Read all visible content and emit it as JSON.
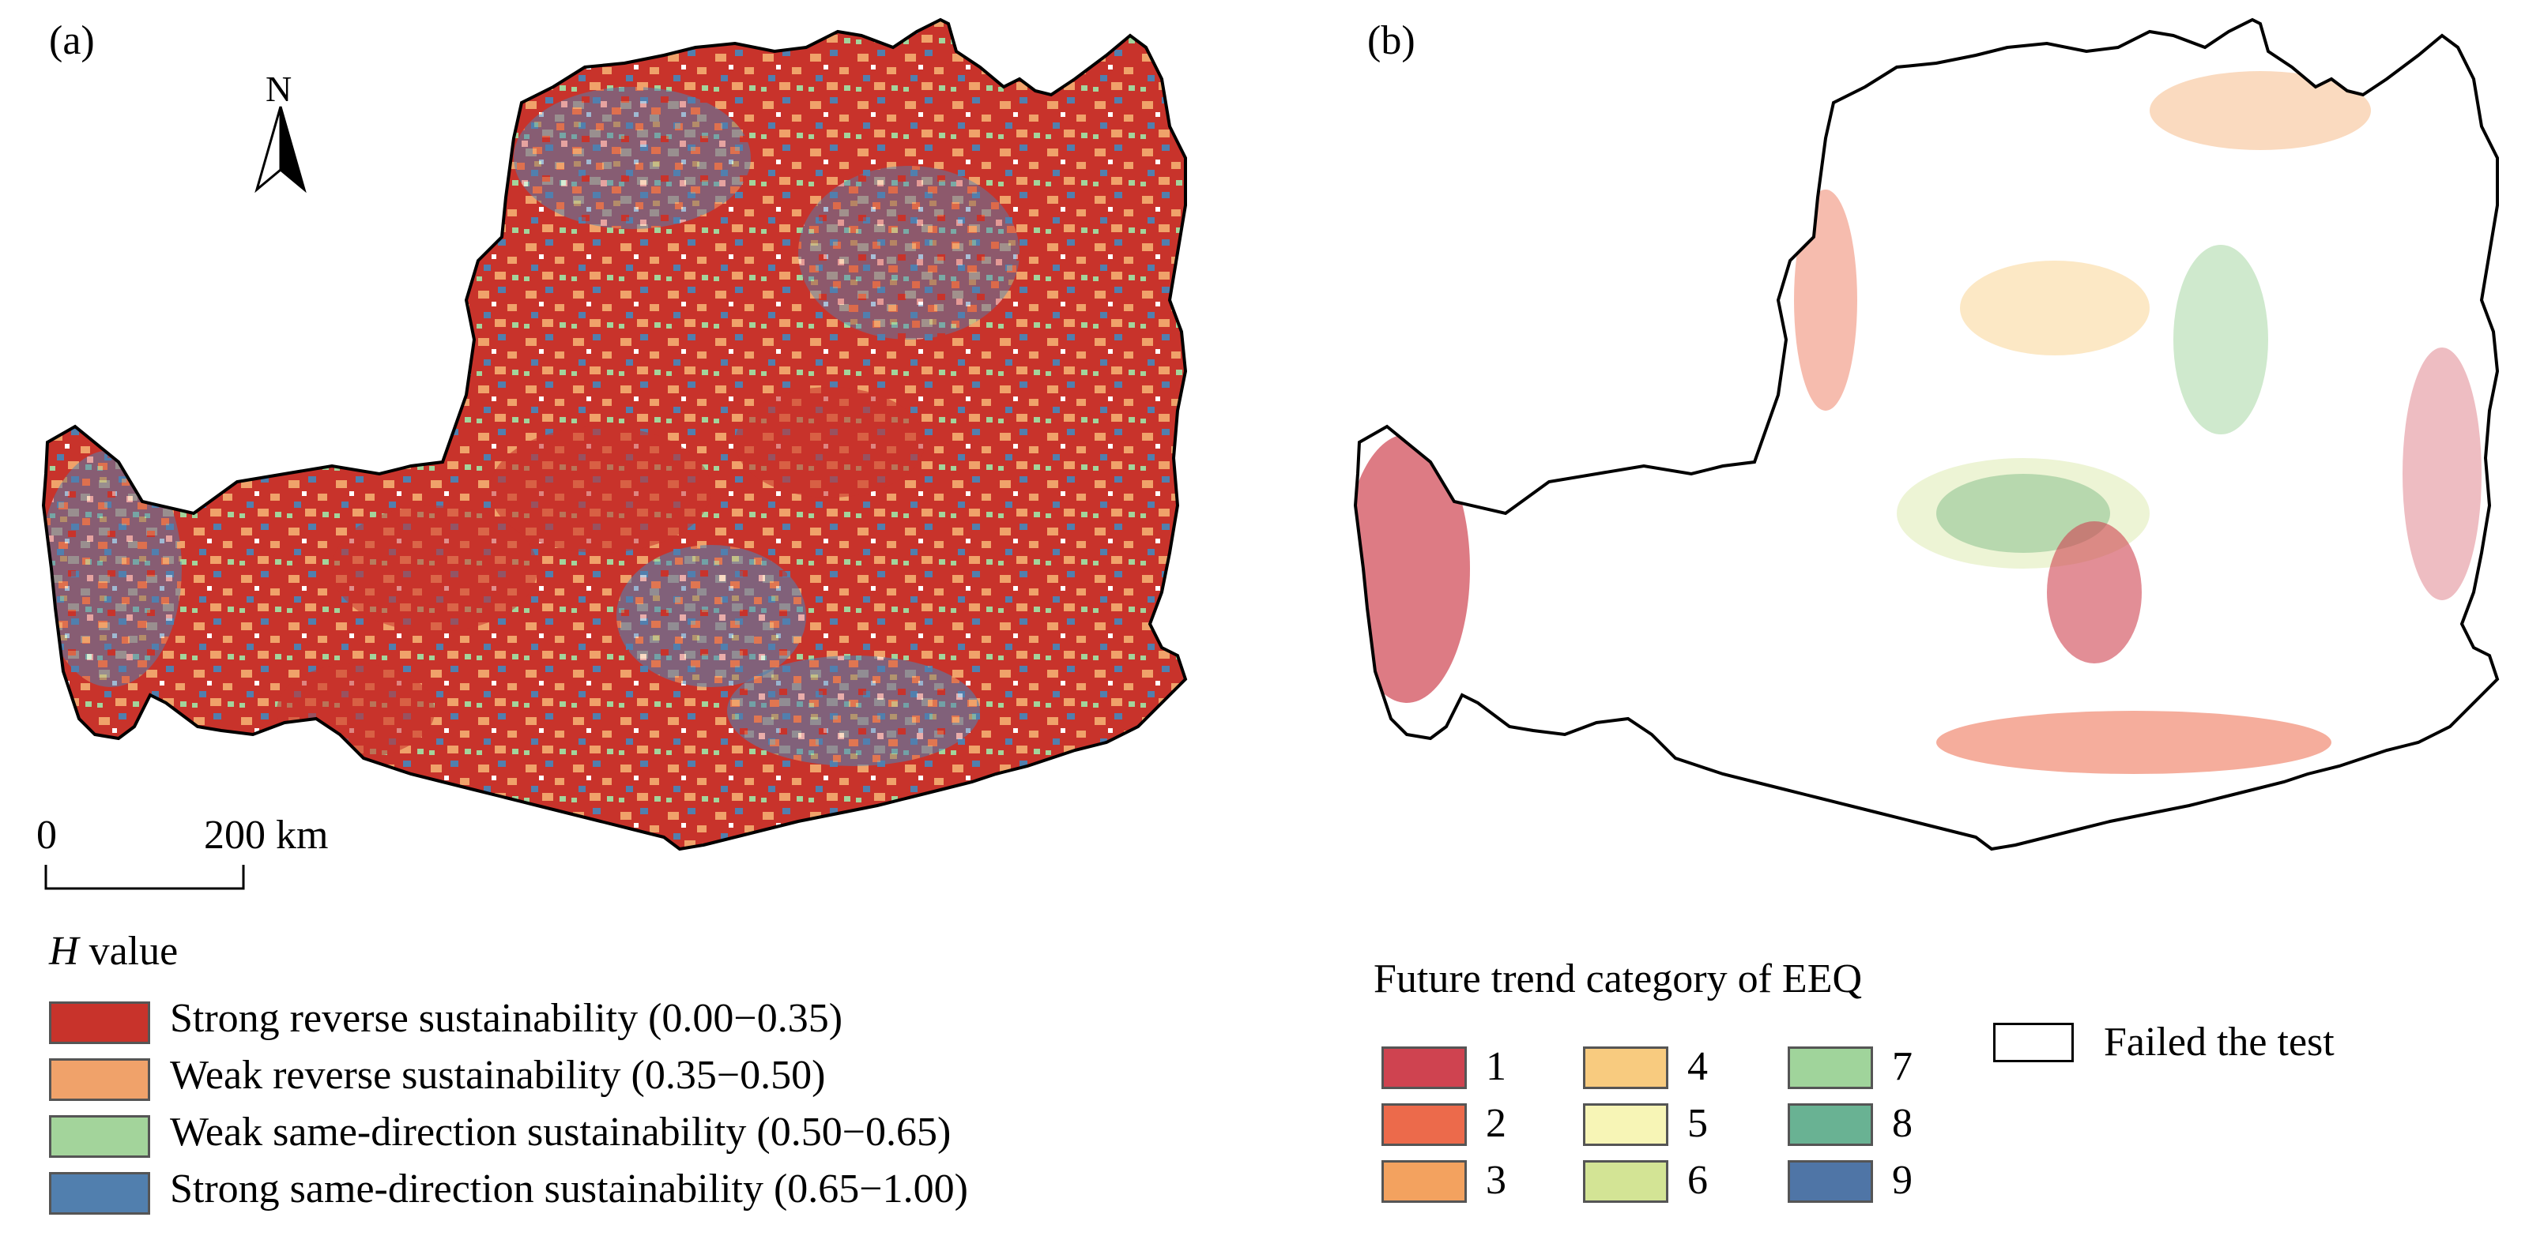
{
  "panel_a": {
    "label": "(a)",
    "north_label": "N",
    "scale_bar": {
      "start": "0",
      "end": "200 km"
    },
    "legend": {
      "title_italic": "H",
      "title_rest": " value",
      "items": [
        {
          "label": "Strong reverse sustainability (0.00−0.35)",
          "color": "#c8332b"
        },
        {
          "label": "Weak reverse sustainability (0.35−0.50)",
          "color": "#f0a26a"
        },
        {
          "label": "Weak same-direction sustainability (0.50−0.65)",
          "color": "#a3d49b"
        },
        {
          "label": "Strong same-direction sustainability (0.65−1.00)",
          "color": "#517fae"
        }
      ]
    }
  },
  "panel_b": {
    "label": "(b)",
    "legend": {
      "title": "Future trend category of EEQ",
      "items": [
        {
          "label": "1",
          "color": "#cf4350"
        },
        {
          "label": "2",
          "color": "#ec6a4b"
        },
        {
          "label": "3",
          "color": "#f3a25f"
        },
        {
          "label": "4",
          "color": "#f8cb7f"
        },
        {
          "label": "5",
          "color": "#f7f5b6"
        },
        {
          "label": "6",
          "color": "#d3e495"
        },
        {
          "label": "7",
          "color": "#a0d49b"
        },
        {
          "label": "8",
          "color": "#69b293"
        },
        {
          "label": "9",
          "color": "#4f75a6"
        }
      ],
      "failed_label": "Failed the test",
      "failed_color": "#ffffff"
    }
  }
}
